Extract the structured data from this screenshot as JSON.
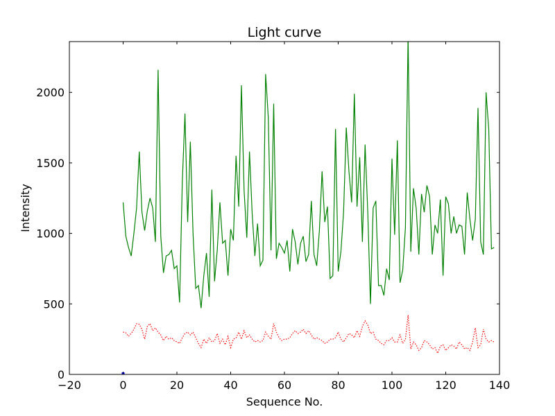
{
  "chart_data": {
    "type": "line",
    "title": "Light curve",
    "xlabel": "Sequence No.",
    "ylabel": "Intensity",
    "xlim": [
      -20,
      140
    ],
    "ylim": [
      0,
      2360
    ],
    "xticks": [
      -20,
      0,
      20,
      40,
      60,
      80,
      100,
      120,
      140
    ],
    "xtick_labels": [
      "−20",
      "0",
      "20",
      "40",
      "60",
      "80",
      "100",
      "120",
      "140"
    ],
    "yticks": [
      0,
      500,
      1000,
      1500,
      2000
    ],
    "ytick_labels": [
      "0",
      "500",
      "1000",
      "1500",
      "2000"
    ],
    "grid": false,
    "series": [
      {
        "color": "#008000",
        "style": "solid",
        "x": [
          0,
          1,
          2,
          3,
          4,
          5,
          6,
          7,
          8,
          9,
          10,
          11,
          12,
          13,
          14,
          15,
          16,
          17,
          18,
          19,
          20,
          21,
          22,
          23,
          24,
          25,
          26,
          27,
          28,
          29,
          30,
          31,
          32,
          33,
          34,
          35,
          36,
          37,
          38,
          39,
          40,
          41,
          42,
          43,
          44,
          45,
          46,
          47,
          48,
          49,
          50,
          51,
          52,
          53,
          54,
          55,
          56,
          57,
          58,
          59,
          60,
          61,
          62,
          63,
          64,
          65,
          66,
          67,
          68,
          69,
          70,
          71,
          72,
          73,
          74,
          75,
          76,
          77,
          78,
          79,
          80,
          81,
          82,
          83,
          84,
          85,
          86,
          87,
          88,
          89,
          90,
          91,
          92,
          93,
          94,
          95,
          96,
          97,
          98,
          99,
          100,
          101,
          102,
          103,
          104,
          105,
          106,
          107,
          108,
          109,
          110,
          111,
          112,
          113,
          114,
          115,
          116,
          117,
          118,
          119,
          120,
          121,
          122,
          123,
          124,
          125,
          126,
          127,
          128,
          129,
          130,
          131,
          132,
          133,
          134,
          135,
          136,
          137,
          138
        ],
        "y": [
          1220,
          980,
          900,
          840,
          1000,
          1180,
          1580,
          1150,
          1020,
          1160,
          1250,
          1180,
          940,
          2160,
          980,
          720,
          840,
          850,
          880,
          750,
          770,
          510,
          1360,
          1850,
          1080,
          1650,
          1000,
          610,
          630,
          470,
          700,
          860,
          550,
          1310,
          660,
          880,
          1220,
          930,
          950,
          700,
          1030,
          950,
          1550,
          1190,
          2050,
          1300,
          970,
          1580,
          1140,
          840,
          1070,
          770,
          810,
          2130,
          1820,
          880,
          1920,
          820,
          930,
          900,
          860,
          950,
          730,
          1030,
          940,
          780,
          930,
          980,
          800,
          850,
          1230,
          850,
          770,
          1020,
          1440,
          1080,
          1190,
          680,
          700,
          1740,
          730,
          870,
          1150,
          1750,
          1440,
          1220,
          1990,
          1190,
          1540,
          940,
          1630,
          1150,
          500,
          1180,
          1230,
          630,
          630,
          560,
          750,
          670,
          1530,
          990,
          1660,
          650,
          740,
          1040,
          2400,
          870,
          1320,
          1180,
          850,
          1280,
          1150,
          1340,
          1260,
          850,
          1060,
          1000,
          1240,
          700,
          1260,
          1210,
          1000,
          1120,
          1000,
          1060,
          1050,
          850,
          1290,
          1100,
          950,
          1100,
          1890,
          940,
          850,
          2000,
          1740,
          890,
          900
        ]
      },
      {
        "color": "#ff0000",
        "style": "dotted",
        "x": [
          0,
          1,
          2,
          3,
          4,
          5,
          6,
          7,
          8,
          9,
          10,
          11,
          12,
          13,
          14,
          15,
          16,
          17,
          18,
          19,
          20,
          21,
          22,
          23,
          24,
          25,
          26,
          27,
          28,
          29,
          30,
          31,
          32,
          33,
          34,
          35,
          36,
          37,
          38,
          39,
          40,
          41,
          42,
          43,
          44,
          45,
          46,
          47,
          48,
          49,
          50,
          51,
          52,
          53,
          54,
          55,
          56,
          57,
          58,
          59,
          60,
          61,
          62,
          63,
          64,
          65,
          66,
          67,
          68,
          69,
          70,
          71,
          72,
          73,
          74,
          75,
          76,
          77,
          78,
          79,
          80,
          81,
          82,
          83,
          84,
          85,
          86,
          87,
          88,
          89,
          90,
          91,
          92,
          93,
          94,
          95,
          96,
          97,
          98,
          99,
          100,
          101,
          102,
          103,
          104,
          105,
          106,
          107,
          108,
          109,
          110,
          111,
          112,
          113,
          114,
          115,
          116,
          117,
          118,
          119,
          120,
          121,
          122,
          123,
          124,
          125,
          126,
          127,
          128,
          129,
          130,
          131,
          132,
          133,
          134,
          135,
          136,
          137,
          138
        ],
        "y": [
          300,
          295,
          270,
          290,
          320,
          360,
          355,
          320,
          250,
          340,
          360,
          310,
          330,
          300,
          280,
          240,
          270,
          250,
          260,
          240,
          230,
          220,
          260,
          290,
          300,
          280,
          300,
          260,
          220,
          190,
          250,
          220,
          260,
          230,
          240,
          290,
          220,
          250,
          210,
          270,
          190,
          250,
          260,
          300,
          250,
          310,
          260,
          280,
          250,
          230,
          240,
          230,
          240,
          300,
          270,
          250,
          360,
          300,
          260,
          240,
          250,
          250,
          260,
          290,
          310,
          290,
          300,
          320,
          290,
          310,
          280,
          250,
          260,
          250,
          240,
          220,
          230,
          250,
          250,
          260,
          300,
          250,
          230,
          260,
          290,
          280,
          260,
          310,
          270,
          340,
          380,
          350,
          290,
          300,
          250,
          240,
          220,
          210,
          240,
          240,
          260,
          230,
          230,
          280,
          220,
          250,
          420,
          180,
          230,
          210,
          170,
          190,
          240,
          230,
          210,
          180,
          190,
          150,
          200,
          210,
          170,
          190,
          210,
          200,
          180,
          230,
          210,
          180,
          190,
          170,
          230,
          330,
          190,
          210,
          320,
          250,
          230,
          240,
          230
        ]
      }
    ],
    "markers": [
      {
        "x": 0,
        "y": 0,
        "color": "#0000ff"
      }
    ]
  }
}
